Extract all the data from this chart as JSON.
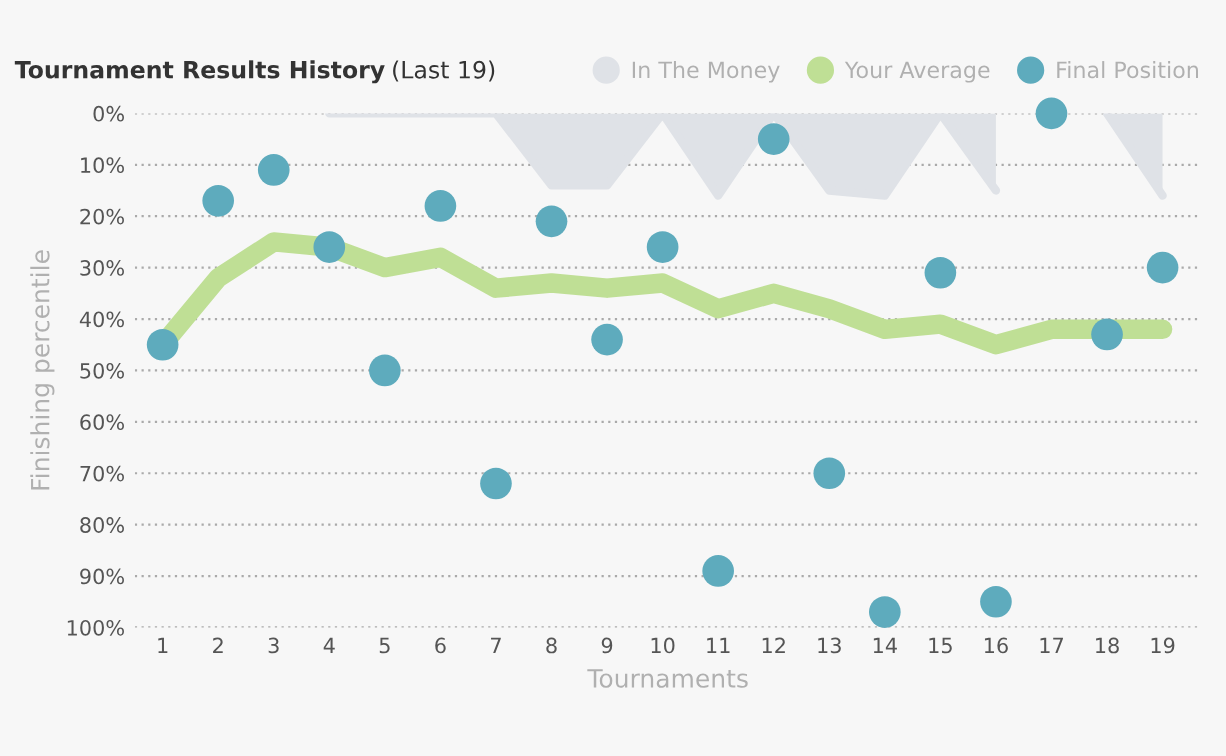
{
  "chart_data": {
    "type": "line",
    "title": "Tournament Results History",
    "subtitle": "(Last 19)",
    "xlabel": "Tournaments",
    "ylabel": "Finishing percentile",
    "categories": [
      "1",
      "2",
      "3",
      "4",
      "5",
      "6",
      "7",
      "8",
      "9",
      "10",
      "11",
      "12",
      "13",
      "14",
      "15",
      "16",
      "17",
      "18",
      "19"
    ],
    "series": [
      {
        "name": "In The Money",
        "type": "area",
        "color": "#dfe2e7",
        "values": [
          null,
          null,
          null,
          0,
          0,
          0,
          0,
          14,
          14,
          0,
          16,
          0,
          15,
          16,
          0,
          15,
          null,
          0,
          16
        ]
      },
      {
        "name": "Your Average",
        "color": "#bfdf95",
        "values": [
          45,
          32,
          25,
          26,
          30,
          28,
          34,
          33,
          34,
          33,
          38,
          35,
          38,
          42,
          41,
          45,
          42,
          42,
          42
        ]
      },
      {
        "name": "Final Position",
        "type": "scatter",
        "marker": "circle",
        "color": "#5eabbd",
        "values": [
          45,
          17,
          11,
          26,
          50,
          18,
          72,
          21,
          44,
          26,
          89,
          5,
          70,
          97,
          31,
          95,
          0,
          43,
          30
        ]
      }
    ],
    "ylim": [
      100,
      0
    ],
    "yticks": [
      {
        "value": 0,
        "label": "0%"
      },
      {
        "value": 10,
        "label": "10%"
      },
      {
        "value": 20,
        "label": "20%"
      },
      {
        "value": 30,
        "label": "30%"
      },
      {
        "value": 40,
        "label": "40%"
      },
      {
        "value": 50,
        "label": "50%"
      },
      {
        "value": 60,
        "label": "60%"
      },
      {
        "value": 70,
        "label": "70%"
      },
      {
        "value": 80,
        "label": "80%"
      },
      {
        "value": 90,
        "label": "90%"
      },
      {
        "value": 100,
        "label": "100%"
      }
    ],
    "grid": "y",
    "legend": "top right"
  }
}
